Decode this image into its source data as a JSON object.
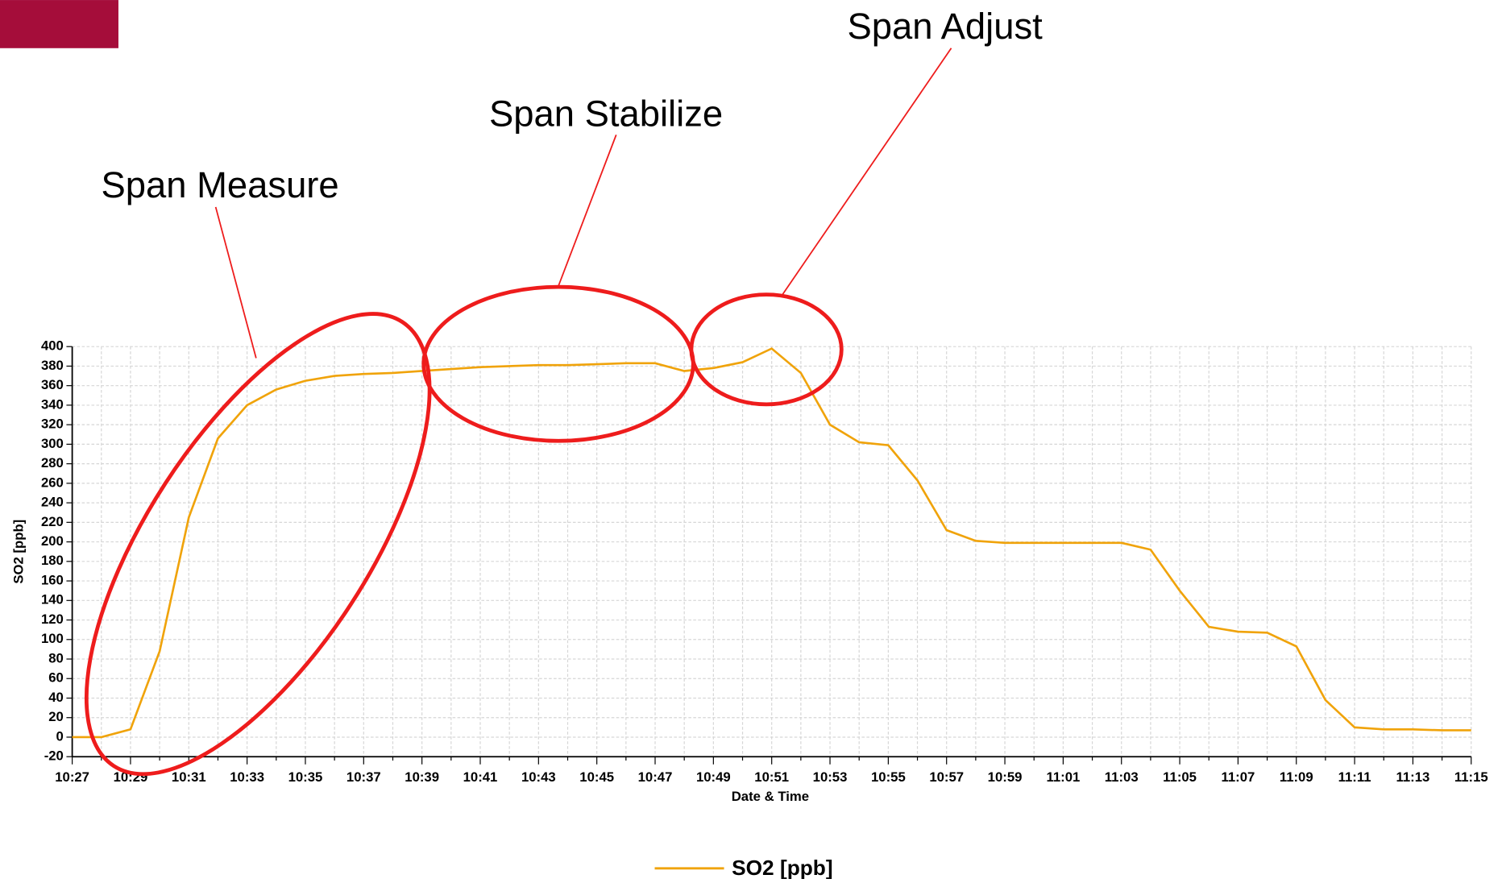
{
  "chart_data": {
    "type": "line",
    "annotations": [
      "Span Measure",
      "Span Stabilize",
      "Span Adjust"
    ],
    "x_label": "Date & Time",
    "y_label": "SO2 [ppb]",
    "categories": [
      "10:27",
      null,
      "10:29",
      null,
      "10:31",
      null,
      "10:33",
      null,
      "10:35",
      null,
      "10:37",
      null,
      "10:39",
      null,
      "10:41",
      null,
      "10:43",
      null,
      "10:45",
      null,
      "10:47",
      null,
      "10:49",
      null,
      "10:51",
      null,
      "10:53",
      null,
      "10:55",
      null,
      "10:57",
      null,
      "10:59",
      null,
      "11:01",
      null,
      "11:03",
      null,
      "11:05",
      null,
      "11:07",
      null,
      "11:09",
      null,
      "11:11",
      null,
      "11:13",
      null,
      "11:15"
    ],
    "series": [
      {
        "name": "SO2 [ppb]",
        "color": "#f0a30a",
        "values": [
          0,
          0,
          8,
          88,
          225,
          306,
          340,
          356,
          365,
          370,
          372,
          373,
          375,
          377,
          379,
          380,
          381,
          381,
          382,
          383,
          383,
          375,
          378,
          384,
          398,
          373,
          320,
          302,
          299,
          263,
          212,
          201,
          199,
          199,
          199,
          199,
          199,
          192,
          150,
          113,
          108,
          107,
          93,
          38,
          10,
          8,
          8,
          7,
          7
        ]
      }
    ],
    "ylim": [
      -20,
      400
    ],
    "yticks": [
      -20,
      0,
      20,
      40,
      60,
      80,
      100,
      120,
      140,
      160,
      180,
      200,
      220,
      240,
      260,
      280,
      300,
      320,
      340,
      360,
      380,
      400
    ],
    "grid": true,
    "legend": "bottom"
  }
}
